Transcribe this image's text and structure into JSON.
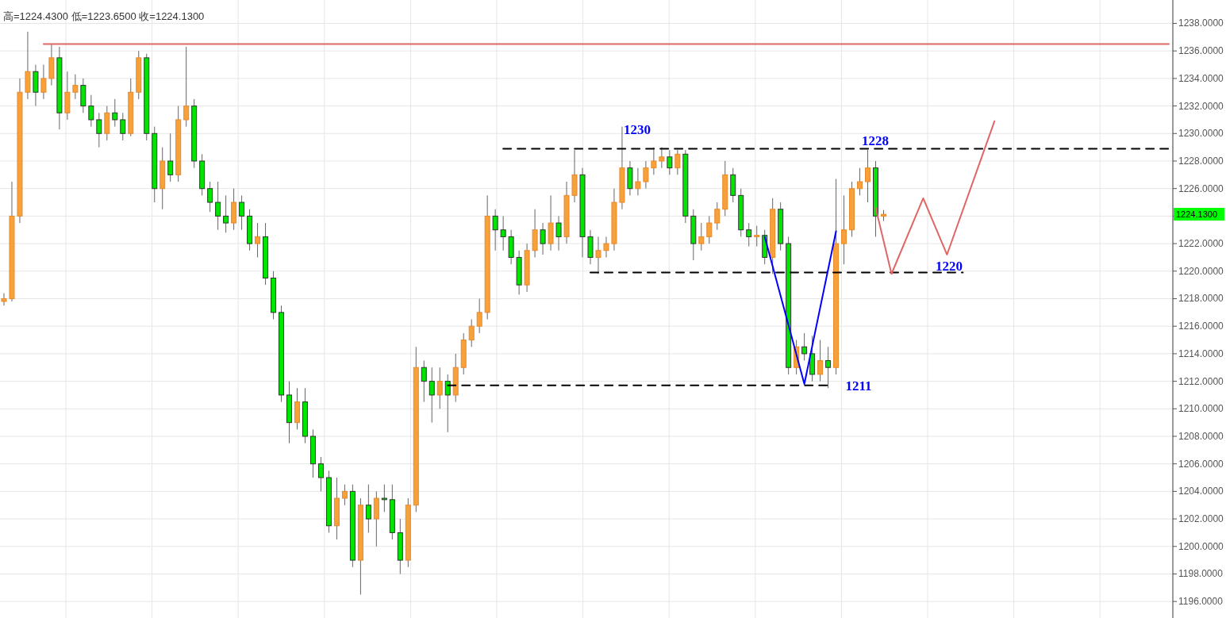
{
  "chart_data": {
    "type": "candlestick",
    "title": "高=1224.4300  低=1223.6500  收=1224.1300",
    "categories": [
      null,
      null,
      null,
      null,
      null,
      null,
      null,
      null,
      null,
      null,
      null,
      null,
      null,
      null,
      null,
      null,
      null,
      null,
      null,
      null,
      null,
      null,
      null,
      null,
      null,
      null,
      null,
      null,
      null,
      null,
      null,
      null,
      null,
      null,
      null,
      null,
      null,
      null,
      null,
      null,
      null,
      null,
      null,
      null,
      null,
      null,
      null,
      null,
      null,
      null,
      null,
      null,
      null,
      null,
      null,
      null,
      null,
      null,
      null,
      null,
      null,
      null,
      null,
      null,
      null,
      null,
      null,
      null,
      null,
      null,
      null,
      null,
      null,
      null,
      null,
      null,
      null,
      null,
      null,
      null,
      null,
      null,
      null,
      null,
      null,
      null,
      null,
      null,
      null,
      null,
      null,
      null,
      null,
      null,
      null,
      null,
      null,
      null,
      null,
      null,
      null,
      null,
      null,
      null,
      null,
      null,
      null,
      null,
      null,
      null,
      null,
      null,
      null,
      null,
      null,
      null,
      null,
      null,
      null,
      null,
      null,
      null,
      null,
      null,
      null,
      null,
      null,
      null,
      null,
      null,
      null,
      null,
      null,
      null,
      null,
      null,
      null,
      null,
      null,
      null,
      null,
      null,
      null,
      null,
      null,
      null,
      null,
      null
    ],
    "ohlc": [
      [
        1217.8,
        1218.4,
        1217.5,
        1218
      ],
      [
        1218,
        1226.5,
        1217.8,
        1224
      ],
      [
        1224,
        1234,
        1223.5,
        1233
      ],
      [
        1233,
        1237.4,
        1232.5,
        1234.5
      ],
      [
        1234.5,
        1235,
        1232,
        1233
      ],
      [
        1233,
        1235,
        1232.5,
        1234
      ],
      [
        1234,
        1236.5,
        1233.5,
        1235.5
      ],
      [
        1235.5,
        1236.3,
        1230.3,
        1231.5
      ],
      [
        1231.5,
        1234.5,
        1231,
        1233
      ],
      [
        1233,
        1234.3,
        1232.5,
        1233.5
      ],
      [
        1233.5,
        1234,
        1231.5,
        1232
      ],
      [
        1232,
        1232.8,
        1230.5,
        1231
      ],
      [
        1231,
        1231.5,
        1229,
        1230
      ],
      [
        1230,
        1232,
        1229.5,
        1231.5
      ],
      [
        1231.5,
        1232.5,
        1230.5,
        1231
      ],
      [
        1231,
        1231.5,
        1229.5,
        1230
      ],
      [
        1230,
        1234,
        1229.8,
        1233
      ],
      [
        1233,
        1236,
        1232.5,
        1235.5
      ],
      [
        1235.5,
        1235.8,
        1229.5,
        1230
      ],
      [
        1230,
        1230.5,
        1225,
        1226
      ],
      [
        1226,
        1229,
        1224.5,
        1228
      ],
      [
        1228,
        1230,
        1226.5,
        1227
      ],
      [
        1227,
        1232,
        1226.5,
        1231
      ],
      [
        1231,
        1236.3,
        1230.5,
        1232
      ],
      [
        1232,
        1232.5,
        1227.5,
        1228
      ],
      [
        1228,
        1228.5,
        1225.5,
        1226
      ],
      [
        1226,
        1226.5,
        1224.3,
        1225
      ],
      [
        1225,
        1226.5,
        1223,
        1224
      ],
      [
        1224,
        1225.5,
        1222.8,
        1223.5
      ],
      [
        1223.5,
        1226,
        1223,
        1225
      ],
      [
        1225,
        1225.5,
        1223,
        1224
      ],
      [
        1224,
        1224.5,
        1221.5,
        1222
      ],
      [
        1222,
        1223.5,
        1221,
        1222.5
      ],
      [
        1222.5,
        1223.5,
        1219,
        1219.5
      ],
      [
        1219.5,
        1220,
        1216.5,
        1217
      ],
      [
        1217,
        1217.5,
        1210.5,
        1211
      ],
      [
        1211,
        1212,
        1207.5,
        1209
      ],
      [
        1209,
        1211.5,
        1208.5,
        1210.5
      ],
      [
        1210.5,
        1211.5,
        1207.5,
        1208
      ],
      [
        1208,
        1208.5,
        1205,
        1206
      ],
      [
        1206,
        1206.5,
        1204,
        1205
      ],
      [
        1205,
        1205.5,
        1201,
        1201.5
      ],
      [
        1201.5,
        1205,
        1200.5,
        1203.5
      ],
      [
        1203.5,
        1204.5,
        1203,
        1204
      ],
      [
        1204,
        1204.5,
        1198.5,
        1199
      ],
      [
        1199,
        1203.5,
        1196.5,
        1203
      ],
      [
        1203,
        1204.5,
        1201,
        1202
      ],
      [
        1202,
        1204,
        1200,
        1203.5
      ],
      [
        1203.5,
        1204.5,
        1202.5,
        1203.4
      ],
      [
        1203.4,
        1204.5,
        1200.5,
        1201
      ],
      [
        1201,
        1202,
        1198,
        1199
      ],
      [
        1199,
        1203.5,
        1198.5,
        1203
      ],
      [
        1203,
        1214.5,
        1202.5,
        1213
      ],
      [
        1213,
        1213.5,
        1210.5,
        1212
      ],
      [
        1212,
        1213,
        1209,
        1211
      ],
      [
        1211,
        1213,
        1210,
        1212
      ],
      [
        1212,
        1212.5,
        1208.3,
        1211
      ],
      [
        1211,
        1214,
        1210.5,
        1213
      ],
      [
        1213,
        1215.5,
        1212.5,
        1215
      ],
      [
        1215,
        1216.5,
        1214.5,
        1216
      ],
      [
        1216,
        1218,
        1215.5,
        1217
      ],
      [
        1217,
        1225.5,
        1216.5,
        1224
      ],
      [
        1224,
        1224.5,
        1221.5,
        1223
      ],
      [
        1223,
        1224,
        1221.5,
        1222.5
      ],
      [
        1222.5,
        1223,
        1220.5,
        1221
      ],
      [
        1221,
        1221.5,
        1218.3,
        1219
      ],
      [
        1219,
        1222,
        1218.5,
        1221.5
      ],
      [
        1221.5,
        1224.5,
        1221,
        1223
      ],
      [
        1223,
        1223.5,
        1221.2,
        1222
      ],
      [
        1222,
        1225.5,
        1221.5,
        1223.5
      ],
      [
        1223.5,
        1224,
        1221.5,
        1222.5
      ],
      [
        1222.5,
        1226.5,
        1222,
        1225.5
      ],
      [
        1225.5,
        1228.8,
        1225,
        1227
      ],
      [
        1227,
        1227.5,
        1221,
        1222.5
      ],
      [
        1222.5,
        1223,
        1220.5,
        1221
      ],
      [
        1221,
        1222.5,
        1219.8,
        1221.5
      ],
      [
        1221.5,
        1222.5,
        1221,
        1222
      ],
      [
        1222,
        1226,
        1221.5,
        1225
      ],
      [
        1225,
        1230.5,
        1224.5,
        1227.5
      ],
      [
        1227.5,
        1228,
        1225.5,
        1226
      ],
      [
        1226,
        1227.5,
        1225.5,
        1226.5
      ],
      [
        1226.5,
        1228,
        1226,
        1227.5
      ],
      [
        1227.5,
        1229,
        1227,
        1228
      ],
      [
        1228,
        1229,
        1227.5,
        1228.3
      ],
      [
        1228.3,
        1228.8,
        1227,
        1227.5
      ],
      [
        1227.5,
        1228.8,
        1227,
        1228.5
      ],
      [
        1228.5,
        1228.8,
        1223.5,
        1224
      ],
      [
        1224,
        1224.5,
        1220.8,
        1222
      ],
      [
        1222,
        1223.5,
        1221.5,
        1222.5
      ],
      [
        1222.5,
        1224,
        1222,
        1223.5
      ],
      [
        1223.5,
        1225,
        1223,
        1224.5
      ],
      [
        1224.5,
        1228,
        1224,
        1227
      ],
      [
        1227,
        1227.5,
        1225,
        1225.5
      ],
      [
        1225.5,
        1226,
        1222.5,
        1223
      ],
      [
        1223,
        1223.5,
        1221.8,
        1222.5
      ],
      [
        1222.5,
        1223.3,
        1221.8,
        1222.6
      ],
      [
        1222.6,
        1223,
        1220.5,
        1221
      ],
      [
        1221,
        1225.3,
        1219.8,
        1224.5
      ],
      [
        1224.5,
        1225,
        1221.5,
        1222
      ],
      [
        1222,
        1222.5,
        1212.5,
        1213
      ],
      [
        1213,
        1215,
        1212.5,
        1214.5
      ],
      [
        1214.5,
        1215.5,
        1213.5,
        1214
      ],
      [
        1214,
        1215.3,
        1212,
        1212.5
      ],
      [
        1212.5,
        1215,
        1212,
        1213.5
      ],
      [
        1213.5,
        1214.5,
        1211.5,
        1213
      ],
      [
        1213,
        1226.7,
        1212.5,
        1222
      ],
      [
        1222,
        1225.5,
        1220.5,
        1223
      ],
      [
        1223,
        1226.5,
        1222.5,
        1226
      ],
      [
        1226,
        1227.5,
        1225.5,
        1226.5
      ],
      [
        1226.5,
        1228.8,
        1225,
        1227.5
      ],
      [
        1227.5,
        1228,
        1222.5,
        1224
      ],
      [
        1224,
        1224.43,
        1223.65,
        1224.13
      ],
      null,
      null,
      null,
      null,
      null,
      null,
      null,
      null,
      null,
      null,
      null,
      null,
      null,
      null,
      null,
      null,
      null,
      null,
      null,
      null,
      null,
      null,
      null,
      null,
      null,
      null,
      null,
      null,
      null,
      null,
      null,
      null,
      null,
      null,
      null,
      null
    ],
    "series": [
      {
        "type": "line",
        "color": "#e06666",
        "line_style": "solid",
        "values": [
          null,
          null,
          null,
          null,
          null,
          1236.5,
          null,
          null,
          null,
          null,
          null,
          null,
          null,
          null,
          null,
          null,
          null,
          null,
          null,
          null,
          null,
          null,
          null,
          null,
          null,
          null,
          null,
          null,
          null,
          null,
          null,
          null,
          null,
          null,
          null,
          null,
          null,
          null,
          null,
          null,
          null,
          null,
          null,
          null,
          null,
          null,
          null,
          null,
          null,
          null,
          null,
          null,
          null,
          null,
          null,
          null,
          null,
          null,
          null,
          null,
          null,
          null,
          null,
          null,
          null,
          null,
          null,
          null,
          null,
          null,
          null,
          null,
          null,
          null,
          null,
          null,
          null,
          null,
          null,
          null,
          null,
          null,
          null,
          null,
          null,
          null,
          null,
          null,
          null,
          null,
          null,
          null,
          null,
          null,
          null,
          null,
          null,
          null,
          null,
          null,
          null,
          null,
          null,
          null,
          null,
          null,
          null,
          null,
          null,
          null,
          null,
          null,
          null,
          null,
          null,
          null,
          null,
          null,
          null,
          null,
          null,
          null,
          null,
          null,
          null,
          null,
          null,
          null,
          null,
          null,
          null,
          null,
          null,
          null,
          null,
          null,
          null,
          null,
          null,
          null,
          null,
          null,
          null,
          null,
          null,
          null,
          null,
          1236.5
        ]
      },
      {
        "type": "line",
        "color": "#000000",
        "line_style": "dashed",
        "values": [
          null,
          null,
          null,
          null,
          null,
          null,
          null,
          null,
          null,
          null,
          null,
          null,
          null,
          null,
          null,
          null,
          null,
          null,
          null,
          null,
          null,
          null,
          null,
          null,
          null,
          null,
          null,
          null,
          null,
          null,
          null,
          null,
          null,
          null,
          null,
          null,
          null,
          null,
          null,
          null,
          null,
          null,
          null,
          null,
          null,
          null,
          null,
          null,
          null,
          null,
          null,
          null,
          null,
          null,
          null,
          null,
          null,
          null,
          null,
          null,
          null,
          null,
          null,
          1228.9,
          null,
          null,
          null,
          null,
          null,
          null,
          null,
          null,
          null,
          null,
          null,
          null,
          null,
          null,
          null,
          null,
          null,
          null,
          null,
          null,
          null,
          null,
          null,
          null,
          null,
          null,
          null,
          null,
          null,
          null,
          null,
          null,
          null,
          null,
          null,
          null,
          null,
          null,
          null,
          null,
          null,
          null,
          null,
          null,
          null,
          null,
          null,
          null,
          null,
          null,
          null,
          null,
          null,
          null,
          null,
          null,
          null,
          null,
          null,
          null,
          null,
          null,
          null,
          null,
          null,
          null,
          null,
          null,
          null,
          null,
          null,
          null,
          null,
          null,
          null,
          null,
          null,
          null,
          null,
          null,
          null,
          null,
          null,
          1228.9
        ]
      },
      {
        "type": "line",
        "color": "#000000",
        "line_style": "dashed",
        "values": [
          null,
          null,
          null,
          null,
          null,
          null,
          null,
          null,
          null,
          null,
          null,
          null,
          null,
          null,
          null,
          null,
          null,
          null,
          null,
          null,
          null,
          null,
          null,
          null,
          null,
          null,
          null,
          null,
          null,
          null,
          null,
          null,
          null,
          null,
          null,
          null,
          null,
          null,
          null,
          null,
          null,
          null,
          null,
          null,
          null,
          null,
          null,
          null,
          null,
          null,
          null,
          null,
          null,
          null,
          null,
          null,
          null,
          null,
          null,
          null,
          null,
          null,
          null,
          null,
          null,
          null,
          null,
          null,
          null,
          null,
          null,
          null,
          null,
          null,
          1219.9,
          null,
          null,
          null,
          null,
          null,
          null,
          null,
          null,
          null,
          null,
          null,
          null,
          null,
          null,
          null,
          null,
          null,
          null,
          null,
          null,
          null,
          null,
          null,
          null,
          null,
          null,
          null,
          null,
          null,
          null,
          null,
          null,
          null,
          null,
          null,
          null,
          null,
          null,
          null,
          null,
          null,
          null,
          null,
          null,
          null,
          null,
          1219.9,
          null,
          null,
          null,
          null,
          null,
          null,
          null,
          null,
          null,
          null,
          null,
          null,
          null,
          null,
          null,
          null,
          null,
          null,
          null,
          null,
          null,
          null,
          null,
          null,
          null,
          null
        ]
      },
      {
        "type": "line",
        "color": "#000000",
        "line_style": "dashed",
        "values": [
          null,
          null,
          null,
          null,
          null,
          null,
          null,
          null,
          null,
          null,
          null,
          null,
          null,
          null,
          null,
          null,
          null,
          null,
          null,
          null,
          null,
          null,
          null,
          null,
          null,
          null,
          null,
          null,
          null,
          null,
          null,
          null,
          null,
          null,
          null,
          null,
          null,
          null,
          null,
          null,
          null,
          null,
          null,
          null,
          null,
          null,
          null,
          null,
          null,
          null,
          null,
          null,
          null,
          null,
          null,
          null,
          1211.7,
          null,
          null,
          null,
          null,
          null,
          null,
          null,
          null,
          null,
          null,
          null,
          null,
          null,
          null,
          null,
          null,
          null,
          null,
          null,
          null,
          null,
          null,
          null,
          null,
          null,
          null,
          null,
          null,
          null,
          null,
          null,
          null,
          null,
          null,
          null,
          null,
          null,
          null,
          null,
          null,
          null,
          null,
          null,
          null,
          null,
          null,
          null,
          1211.7,
          null,
          null,
          null,
          null,
          null,
          null,
          null,
          null,
          null,
          null,
          null,
          null,
          null,
          null,
          null,
          null,
          null,
          null,
          null,
          null,
          null,
          null,
          null,
          null,
          null,
          null,
          null,
          null,
          null,
          null,
          null,
          null,
          null,
          null,
          null,
          null,
          null,
          null,
          null,
          null,
          null,
          null,
          null
        ]
      },
      {
        "type": "line",
        "color": "#0000ff",
        "line_style": "solid",
        "values": [
          null,
          null,
          null,
          null,
          null,
          null,
          null,
          null,
          null,
          null,
          null,
          null,
          null,
          null,
          null,
          null,
          null,
          null,
          null,
          null,
          null,
          null,
          null,
          null,
          null,
          null,
          null,
          null,
          null,
          null,
          null,
          null,
          null,
          null,
          null,
          null,
          null,
          null,
          null,
          null,
          null,
          null,
          null,
          null,
          null,
          null,
          null,
          null,
          null,
          null,
          null,
          null,
          null,
          null,
          null,
          null,
          null,
          null,
          null,
          null,
          null,
          null,
          null,
          null,
          null,
          null,
          null,
          null,
          null,
          null,
          null,
          null,
          null,
          null,
          null,
          null,
          null,
          null,
          null,
          null,
          null,
          null,
          null,
          null,
          null,
          null,
          null,
          null,
          null,
          null,
          null,
          null,
          null,
          null,
          null,
          null,
          1222.5,
          null,
          null,
          null,
          null,
          1211.8,
          null,
          null,
          null,
          1222.9,
          null,
          null,
          null,
          null,
          null,
          null,
          null,
          null,
          null,
          null,
          null,
          null,
          null,
          null,
          null,
          null,
          null,
          null,
          null,
          null,
          null,
          null,
          null,
          null,
          null,
          null,
          null,
          null,
          null,
          null,
          null,
          null,
          null,
          null,
          null,
          null,
          null,
          null,
          null,
          null,
          null,
          null
        ]
      },
      {
        "type": "line",
        "color": "#e06666",
        "line_style": "solid",
        "values": [
          null,
          null,
          null,
          null,
          null,
          null,
          null,
          null,
          null,
          null,
          null,
          null,
          null,
          null,
          null,
          null,
          null,
          null,
          null,
          null,
          null,
          null,
          null,
          null,
          null,
          null,
          null,
          null,
          null,
          null,
          null,
          null,
          null,
          null,
          null,
          null,
          null,
          null,
          null,
          null,
          null,
          null,
          null,
          null,
          null,
          null,
          null,
          null,
          null,
          null,
          null,
          null,
          null,
          null,
          null,
          null,
          null,
          null,
          null,
          null,
          null,
          null,
          null,
          null,
          null,
          null,
          null,
          null,
          null,
          null,
          null,
          null,
          null,
          null,
          null,
          null,
          null,
          null,
          null,
          null,
          null,
          null,
          null,
          null,
          null,
          null,
          null,
          null,
          null,
          null,
          null,
          null,
          null,
          null,
          null,
          null,
          null,
          null,
          null,
          null,
          null,
          null,
          null,
          null,
          null,
          null,
          null,
          null,
          null,
          null,
          1224.6,
          null,
          1219.8,
          null,
          null,
          null,
          1225.3,
          null,
          null,
          1221.2,
          null,
          null,
          null,
          null,
          null,
          1230.9,
          null,
          null,
          null,
          null,
          null,
          null,
          null,
          null,
          null,
          null,
          null,
          null,
          null,
          null,
          null,
          null,
          null,
          null,
          null,
          null,
          null,
          null
        ]
      }
    ],
    "annotations": [
      "1230",
      "1228",
      "1220",
      "1211",
      "1224.1300"
    ],
    "ylim": [
      1194.8,
      1239.7
    ],
    "yticks": [
      {
        "value": 1196,
        "label": "1196.0000"
      },
      {
        "value": 1198,
        "label": "1198.0000"
      },
      {
        "value": 1200,
        "label": "1200.0000"
      },
      {
        "value": 1202,
        "label": "1202.0000"
      },
      {
        "value": 1204,
        "label": "1204.0000"
      },
      {
        "value": 1206,
        "label": "1206.0000"
      },
      {
        "value": 1208,
        "label": "1208.0000"
      },
      {
        "value": 1210,
        "label": "1210.0000"
      },
      {
        "value": 1212,
        "label": "1212.0000"
      },
      {
        "value": 1214,
        "label": "1214.0000"
      },
      {
        "value": 1216,
        "label": "1216.0000"
      },
      {
        "value": 1218,
        "label": "1218.0000"
      },
      {
        "value": 1220,
        "label": "1220.0000"
      },
      {
        "value": 1222,
        "label": "1222.0000"
      },
      {
        "value": 1224,
        "label": null
      },
      {
        "value": 1226,
        "label": "1226.0000"
      },
      {
        "value": 1228,
        "label": "1228.0000"
      },
      {
        "value": 1230,
        "label": "1230.0000"
      },
      {
        "value": 1232,
        "label": "1232.0000"
      },
      {
        "value": 1234,
        "label": "1234.0000"
      },
      {
        "value": 1236,
        "label": "1236.0000"
      },
      {
        "value": 1238,
        "label": "1238.0000"
      }
    ],
    "grid": true,
    "tick_labels": "y"
  }
}
